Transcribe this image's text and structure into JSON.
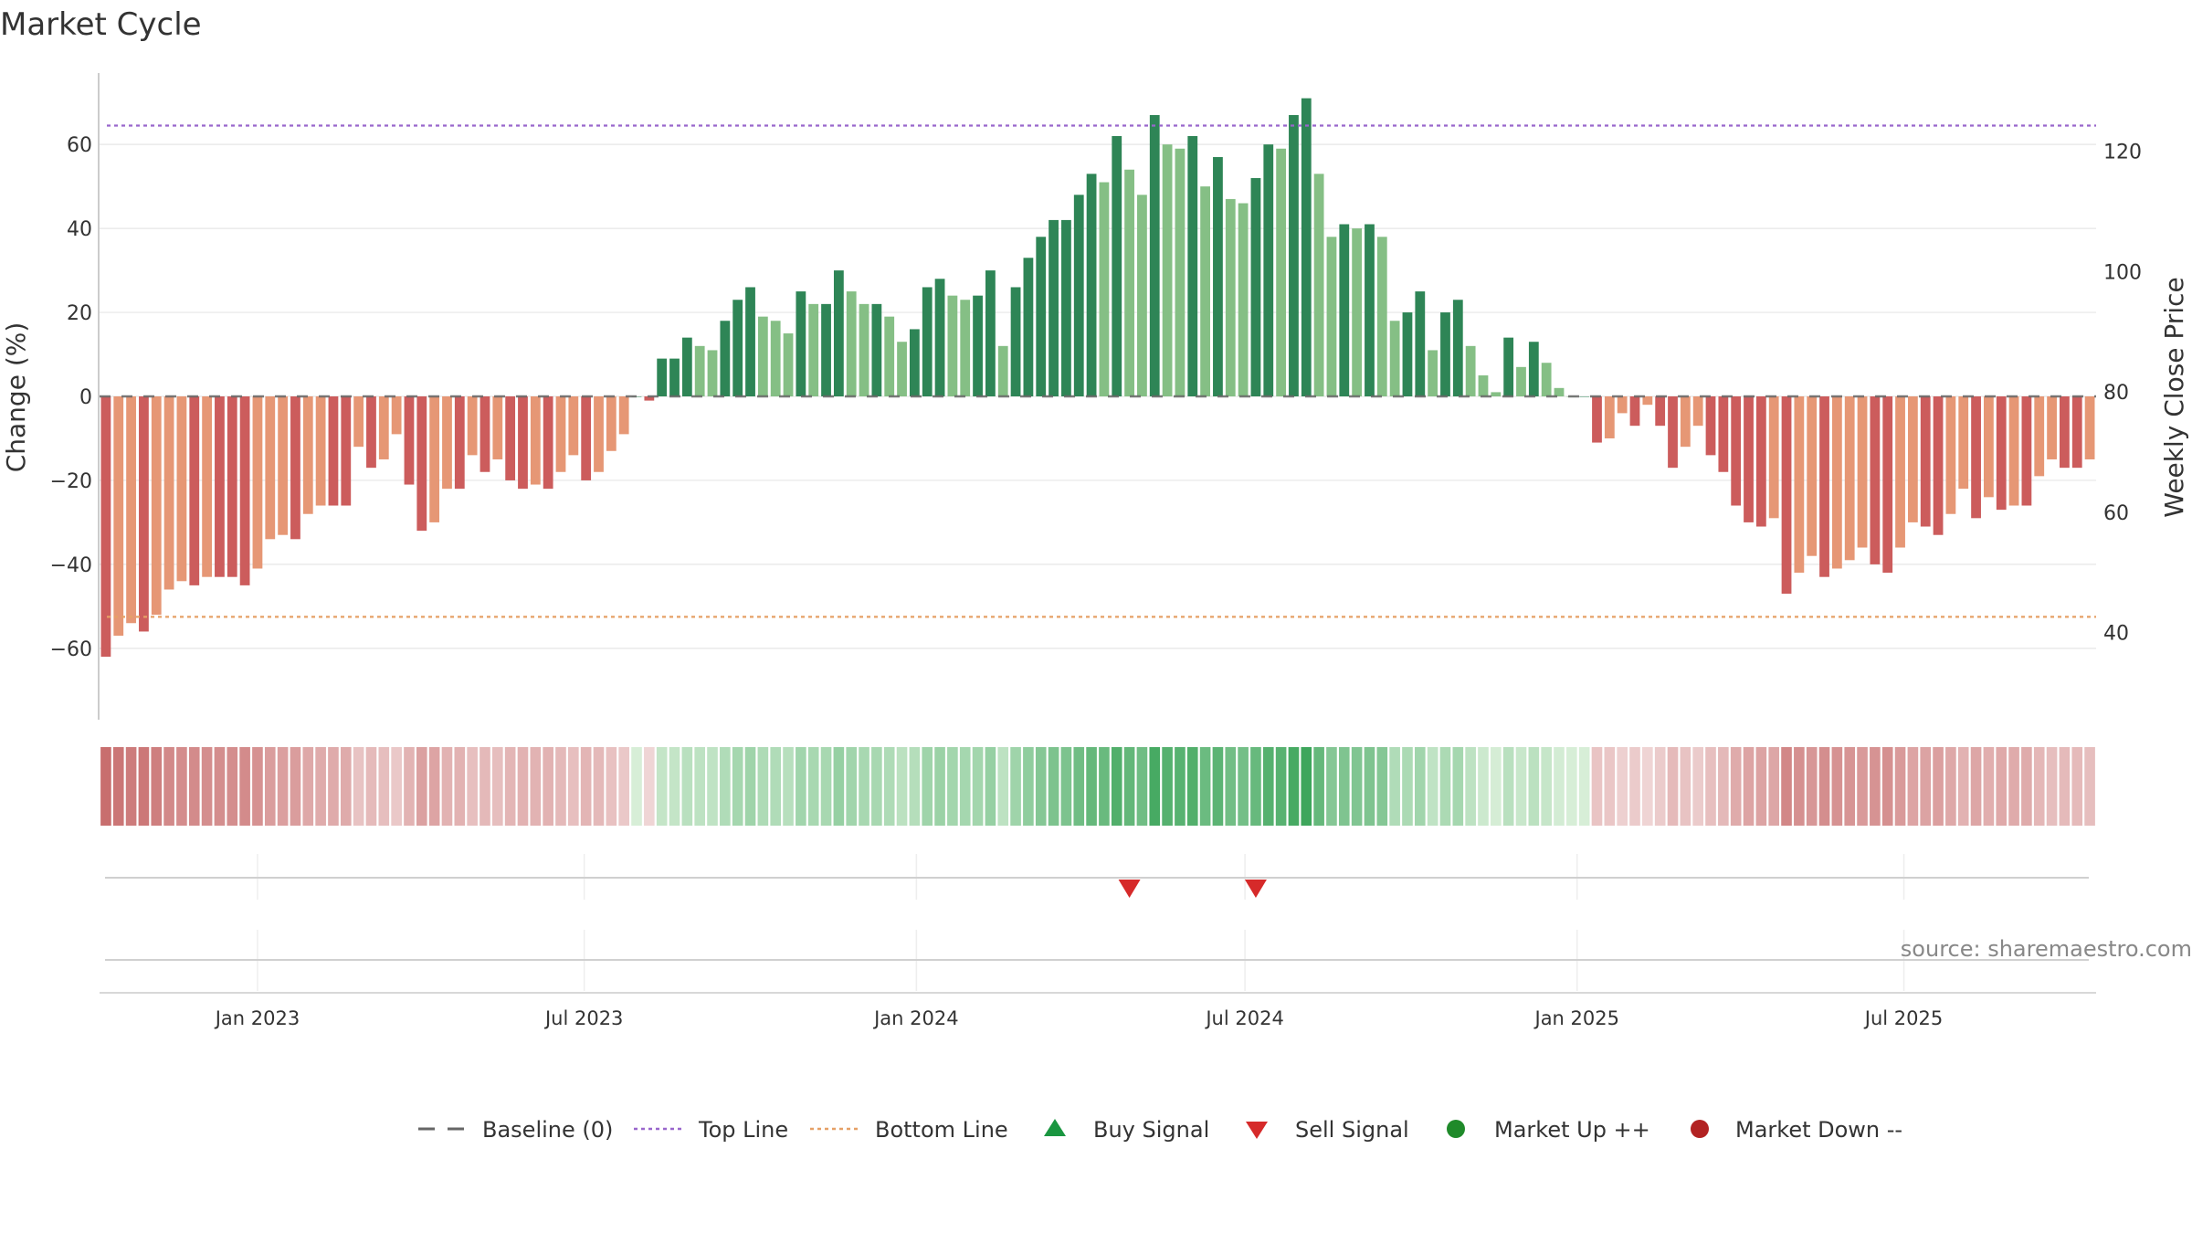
{
  "title": "Market Cycle",
  "source": "source: sharemaestro.com",
  "colors": {
    "up_dark": "#2e8556",
    "up_light": "#85bf85",
    "down_dark": "#cc5c5c",
    "down_light": "#e69775",
    "top_line": "#9966cc",
    "bottom_line": "#e6a066",
    "sell": "#d62a2a",
    "buy": "#1a9640",
    "market_up": "#1f8a2a",
    "market_down": "#b22222",
    "baseline": "#666666"
  },
  "legend": [
    {
      "name": "Baseline (0)",
      "kind": "dash"
    },
    {
      "name": "Top Line",
      "kind": "dot-purple"
    },
    {
      "name": "Bottom Line",
      "kind": "dot-orange"
    },
    {
      "name": "Buy Signal",
      "kind": "tri-up"
    },
    {
      "name": "Sell Signal",
      "kind": "tri-down"
    },
    {
      "name": "Market Up ++",
      "kind": "circle-green"
    },
    {
      "name": "Market Down --",
      "kind": "circle-red"
    }
  ],
  "chart_data": {
    "type": "bar",
    "frequency": "weekly",
    "start_date": "2022-10-09",
    "ylabel": "Change (%)",
    "y2label": "Weekly Close Price",
    "ylim": [
      -77,
      77
    ],
    "yticks": [
      -60,
      -40,
      -20,
      0,
      20,
      40,
      60
    ],
    "y2lim": [
      25.5,
      133.0
    ],
    "y2ticks": [
      40,
      60,
      80,
      100,
      120
    ],
    "top_line": 64.5,
    "bottom_line": -52.5,
    "baseline": 0,
    "xticks": [
      {
        "label": "Jan 2023",
        "date": "2023-01-01"
      },
      {
        "label": "Jul 2023",
        "date": "2023-07-01"
      },
      {
        "label": "Jan 2024",
        "date": "2024-01-01"
      },
      {
        "label": "Jul 2024",
        "date": "2024-07-01"
      },
      {
        "label": "Jan 2025",
        "date": "2025-01-01"
      },
      {
        "label": "Jul 2025",
        "date": "2025-07-01"
      }
    ],
    "values": [
      -62,
      -57,
      -54,
      -56,
      -52,
      -46,
      -44,
      -45,
      -43,
      -43,
      -43,
      -45,
      -41,
      -34,
      -33,
      -34,
      -28,
      -26,
      -26,
      -26,
      -12,
      -17,
      -15,
      -9,
      -21,
      -32,
      -30,
      -22,
      -22,
      -14,
      -18,
      -15,
      -20,
      -22,
      -21,
      -22,
      -18,
      -14,
      -20,
      -18,
      -13,
      -9,
      0,
      -1,
      9,
      9,
      14,
      12,
      11,
      18,
      23,
      26,
      19,
      18,
      15,
      25,
      22,
      22,
      30,
      25,
      22,
      22,
      19,
      13,
      16,
      26,
      28,
      24,
      23,
      24,
      30,
      12,
      26,
      33,
      38,
      42,
      42,
      48,
      53,
      51,
      62,
      54,
      48,
      67,
      60,
      59,
      62,
      50,
      57,
      47,
      46,
      52,
      60,
      59,
      67,
      71,
      53,
      38,
      41,
      40,
      41,
      38,
      18,
      20,
      25,
      11,
      20,
      23,
      12,
      5,
      1,
      14,
      7,
      13,
      8,
      2,
      0,
      0,
      -11,
      -10,
      -4,
      -7,
      -2,
      -7,
      -17,
      -12,
      -7,
      -14,
      -18,
      -26,
      -30,
      -31,
      -29,
      -47,
      -42,
      -38,
      -43,
      -41,
      -39,
      -36,
      -40,
      -42,
      -36,
      -30,
      -31,
      -33,
      -28,
      -22,
      -29,
      -24,
      -27,
      -26,
      -26,
      -19,
      -15,
      -17,
      -17,
      -15
    ],
    "sell_signals": [
      "2024-04-28",
      "2024-07-07"
    ],
    "buy_signals": []
  }
}
